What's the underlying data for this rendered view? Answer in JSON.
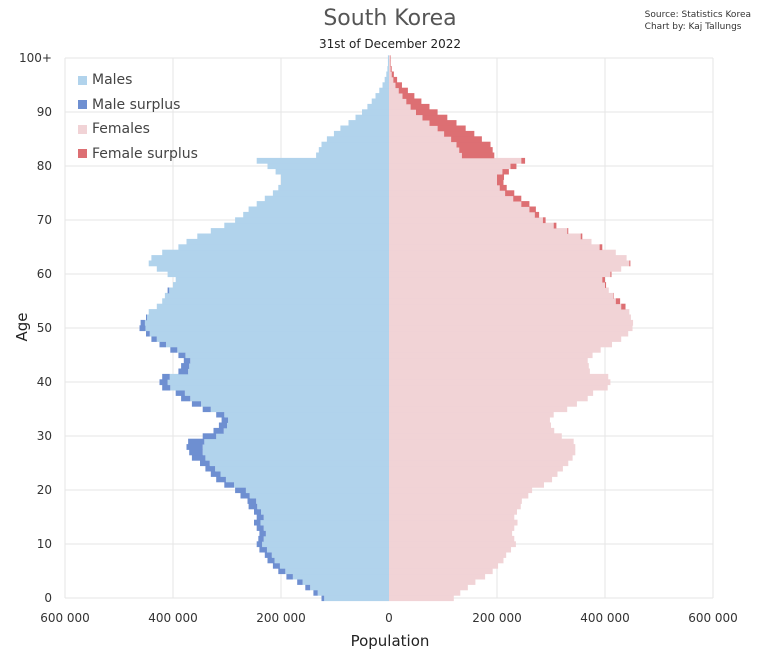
{
  "title": "South Korea",
  "subtitle": "31st of December 2022",
  "source": {
    "line1": "Source: Statistics Korea",
    "line2": "Chart by: Kaj Tallungs"
  },
  "colors": {
    "males": "#b1d3ec",
    "male_surplus": "#6e8fd1",
    "females": "#f1d3d6",
    "female_surplus": "#dd6f73",
    "grid": "#e6e6e6"
  },
  "chart_data": {
    "type": "bar",
    "orientation": "horizontal",
    "title": "South Korea",
    "subtitle": "31st of December 2022",
    "xlabel": "Population",
    "ylabel": "Age",
    "xlim": [
      -600000,
      600000
    ],
    "ylim": [
      0,
      100
    ],
    "x_ticks": [
      "600 000",
      "400 000",
      "200 000",
      "0",
      "200 000",
      "400 000",
      "600 000"
    ],
    "y_ticks": [
      "0",
      "10",
      "20",
      "30",
      "40",
      "50",
      "60",
      "70",
      "80",
      "90",
      "100+"
    ],
    "legend": {
      "placement": "top-left",
      "entries": [
        "Males",
        "Male surplus",
        "Females",
        "Female surplus"
      ]
    },
    "grid": true,
    "ages": [
      0,
      1,
      2,
      3,
      4,
      5,
      6,
      7,
      8,
      9,
      10,
      11,
      12,
      13,
      14,
      15,
      16,
      17,
      18,
      19,
      20,
      21,
      22,
      23,
      24,
      25,
      26,
      27,
      28,
      29,
      30,
      31,
      32,
      33,
      34,
      35,
      36,
      37,
      38,
      39,
      40,
      41,
      42,
      43,
      44,
      45,
      46,
      47,
      48,
      49,
      50,
      51,
      52,
      53,
      54,
      55,
      56,
      57,
      58,
      59,
      60,
      61,
      62,
      63,
      64,
      65,
      66,
      67,
      68,
      69,
      70,
      71,
      72,
      73,
      74,
      75,
      76,
      77,
      78,
      79,
      80,
      81,
      82,
      83,
      84,
      85,
      86,
      87,
      88,
      89,
      90,
      91,
      92,
      93,
      94,
      95,
      96,
      97,
      98,
      99,
      "100+"
    ],
    "series": [
      {
        "name": "Males",
        "values": [
          125000,
          140000,
          155000,
          170000,
          190000,
          205000,
          215000,
          225000,
          230000,
          240000,
          245000,
          242000,
          240000,
          245000,
          250000,
          245000,
          250000,
          260000,
          262000,
          275000,
          285000,
          305000,
          320000,
          330000,
          340000,
          350000,
          365000,
          370000,
          375000,
          372000,
          345000,
          325000,
          315000,
          310000,
          320000,
          345000,
          365000,
          385000,
          395000,
          420000,
          425000,
          420000,
          390000,
          385000,
          380000,
          390000,
          405000,
          425000,
          440000,
          450000,
          462000,
          460000,
          450000,
          445000,
          430000,
          420000,
          415000,
          410000,
          400000,
          395000,
          410000,
          430000,
          445000,
          440000,
          420000,
          390000,
          375000,
          355000,
          330000,
          305000,
          285000,
          270000,
          260000,
          245000,
          230000,
          215000,
          205000,
          200000,
          200000,
          210000,
          225000,
          245000,
          135000,
          130000,
          125000,
          115000,
          102000,
          90000,
          75000,
          62000,
          50000,
          40000,
          32000,
          25000,
          18000,
          12000,
          8000,
          5000,
          3000,
          2000,
          2000
        ]
      },
      {
        "name": "Females",
        "values": [
          120000,
          132000,
          146000,
          160000,
          178000,
          192000,
          202000,
          212000,
          217000,
          226000,
          235000,
          232000,
          228000,
          232000,
          238000,
          232000,
          237000,
          244000,
          246000,
          258000,
          265000,
          287000,
          302000,
          312000,
          322000,
          332000,
          340000,
          345000,
          345000,
          342000,
          320000,
          306000,
          300000,
          298000,
          305000,
          330000,
          348000,
          368000,
          378000,
          405000,
          410000,
          406000,
          372000,
          370000,
          368000,
          377000,
          392000,
          413000,
          430000,
          443000,
          451000,
          452000,
          448000,
          445000,
          438000,
          428000,
          416000,
          407000,
          402000,
          400000,
          412000,
          430000,
          447000,
          440000,
          420000,
          395000,
          375000,
          358000,
          332000,
          310000,
          290000,
          278000,
          272000,
          260000,
          245000,
          232000,
          218000,
          212000,
          213000,
          222000,
          236000,
          252000,
          195000,
          192000,
          188000,
          172000,
          158000,
          142000,
          125000,
          108000,
          90000,
          75000,
          60000,
          47000,
          35000,
          24000,
          15000,
          9000,
          5000,
          3000,
          3000
        ]
      }
    ]
  }
}
